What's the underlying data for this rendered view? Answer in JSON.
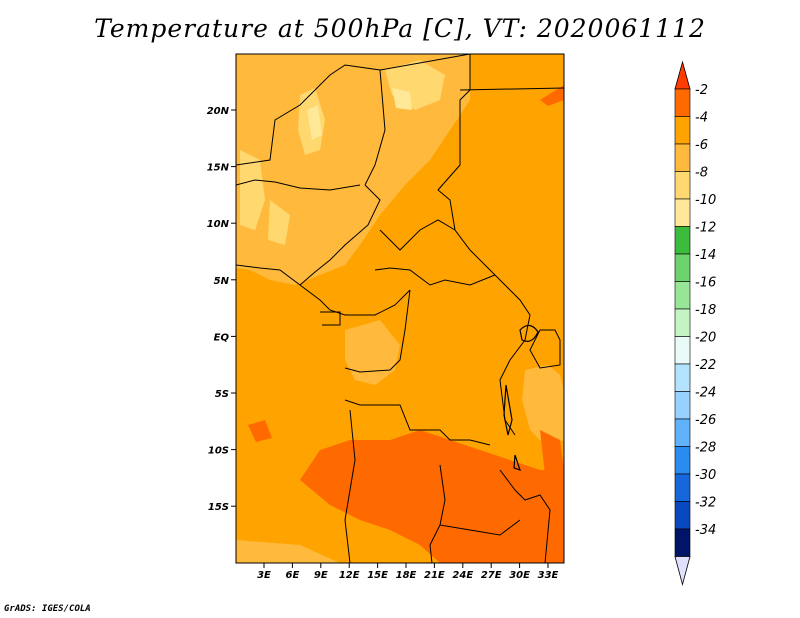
{
  "title": "Temperature at 500hPa [C], VT: 2020061112",
  "credit": "GrADS: IGES/COLA",
  "map": {
    "lon_ticks": [
      "3E",
      "6E",
      "9E",
      "12E",
      "15E",
      "18E",
      "21E",
      "24E",
      "27E",
      "30E",
      "33E"
    ],
    "lat_ticks": [
      "20N",
      "15N",
      "10N",
      "5N",
      "EQ",
      "5S",
      "10S",
      "15S"
    ],
    "colors": {
      "base": "#ffa300",
      "warm": "#ff6a00",
      "cool": "#ffb93c",
      "cooler": "#ffd870",
      "coolest": "#ffe897",
      "border": "#000000"
    }
  },
  "colorbar": {
    "labels": [
      "-2",
      "-4",
      "-6",
      "-8",
      "-10",
      "-12",
      "-14",
      "-16",
      "-18",
      "-20",
      "-22",
      "-24",
      "-26",
      "-28",
      "-30",
      "-32",
      "-34"
    ],
    "colors": [
      "#ff6a00",
      "#ffa300",
      "#ffb93c",
      "#ffd870",
      "#ffe897",
      "#3cbc3d",
      "#6cd36c",
      "#97e697",
      "#c4f4c4",
      "#e8fbf8",
      "#b4e3ff",
      "#97d1ff",
      "#60b2fa",
      "#2a8cf0",
      "#1666dc",
      "#0a48c0",
      "#001468"
    ],
    "top_triangle_color": "#ff3d00",
    "bottom_triangle_color": "#e0e0ff"
  }
}
